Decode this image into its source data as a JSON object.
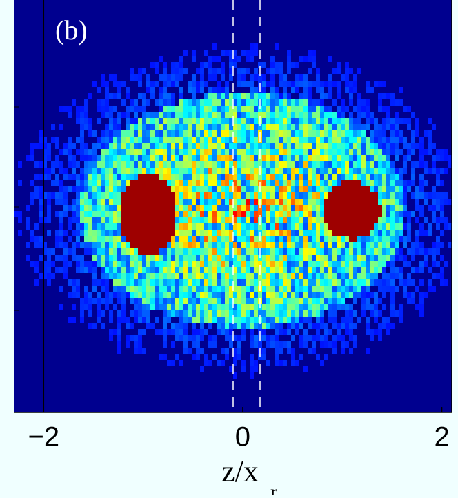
{
  "chart_data": {
    "type": "heatmap",
    "panel_label": "(b)",
    "x_label": "z/x",
    "x_label_subscript": "r",
    "xlim": [
      -2.3,
      2.1
    ],
    "xticks": [
      {
        "value": -2,
        "label": "−2"
      },
      0,
      2
    ]
  }
}
